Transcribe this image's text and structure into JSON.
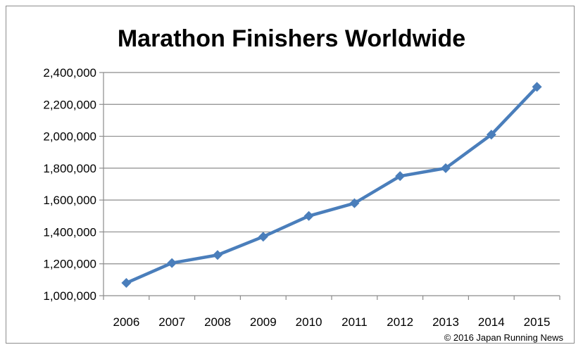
{
  "chart_data": {
    "type": "line",
    "title": "Marathon Finishers Worldwide",
    "xlabel": "",
    "ylabel": "",
    "x": [
      "2006",
      "2007",
      "2008",
      "2009",
      "2010",
      "2011",
      "2012",
      "2013",
      "2014",
      "2015"
    ],
    "series": [
      {
        "name": "Marathon Finishers",
        "values": [
          1080000,
          1205000,
          1255000,
          1370000,
          1500000,
          1580000,
          1750000,
          1800000,
          2010000,
          2310000
        ]
      }
    ],
    "ylim": [
      1000000,
      2400000
    ],
    "yticks": [
      "1,000,000",
      "1,200,000",
      "1,400,000",
      "1,600,000",
      "1,800,000",
      "2,000,000",
      "2,200,000",
      "2,400,000"
    ],
    "ytick_values": [
      1000000,
      1200000,
      1400000,
      1600000,
      1800000,
      2000000,
      2200000,
      2400000
    ],
    "grid": true,
    "legend": "none",
    "line_color": "#4a7ebb",
    "credit": "© 2016 Japan Running News"
  }
}
